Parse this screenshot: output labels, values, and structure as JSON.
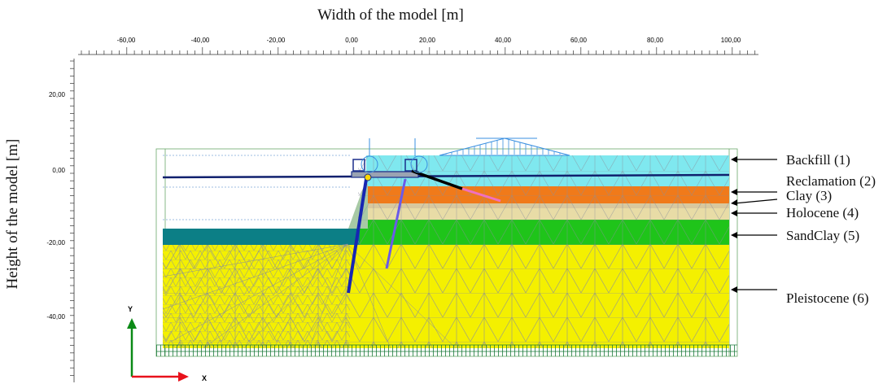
{
  "axes": {
    "x_title": "Width of the model [m]",
    "y_title": "Height of the model [m]",
    "x_ticks": [
      "-60,00",
      "-40,00",
      "-20,00",
      "0,00",
      "20,00",
      "40,00",
      "60,00",
      "80,00",
      "100,00"
    ],
    "y_ticks": [
      "20,00",
      "0,00",
      "-20,00",
      "-40,00"
    ]
  },
  "gizmo": {
    "x_label": "X",
    "y_label": "Y",
    "x_color": "#e8111b",
    "y_color": "#0b8a16"
  },
  "layers": [
    {
      "label": "Backfill (1)",
      "color": "#7fe8ef"
    },
    {
      "label": "Reclamation (2)",
      "color": "#f07a1a"
    },
    {
      "label": "Clay (3)",
      "color": "#d8c89e"
    },
    {
      "label": "Holocene (4)",
      "color": "#e8dca6"
    },
    {
      "label": "SandClay (5)",
      "color": "#1fc41a"
    },
    {
      "label": "Pleistocene (6)",
      "color": "#f4f000"
    }
  ],
  "colors": {
    "water": "#0c7f86",
    "mesh": "#8a8f9a",
    "structure": "#1b2f8c",
    "load": "#3a8fe0"
  }
}
